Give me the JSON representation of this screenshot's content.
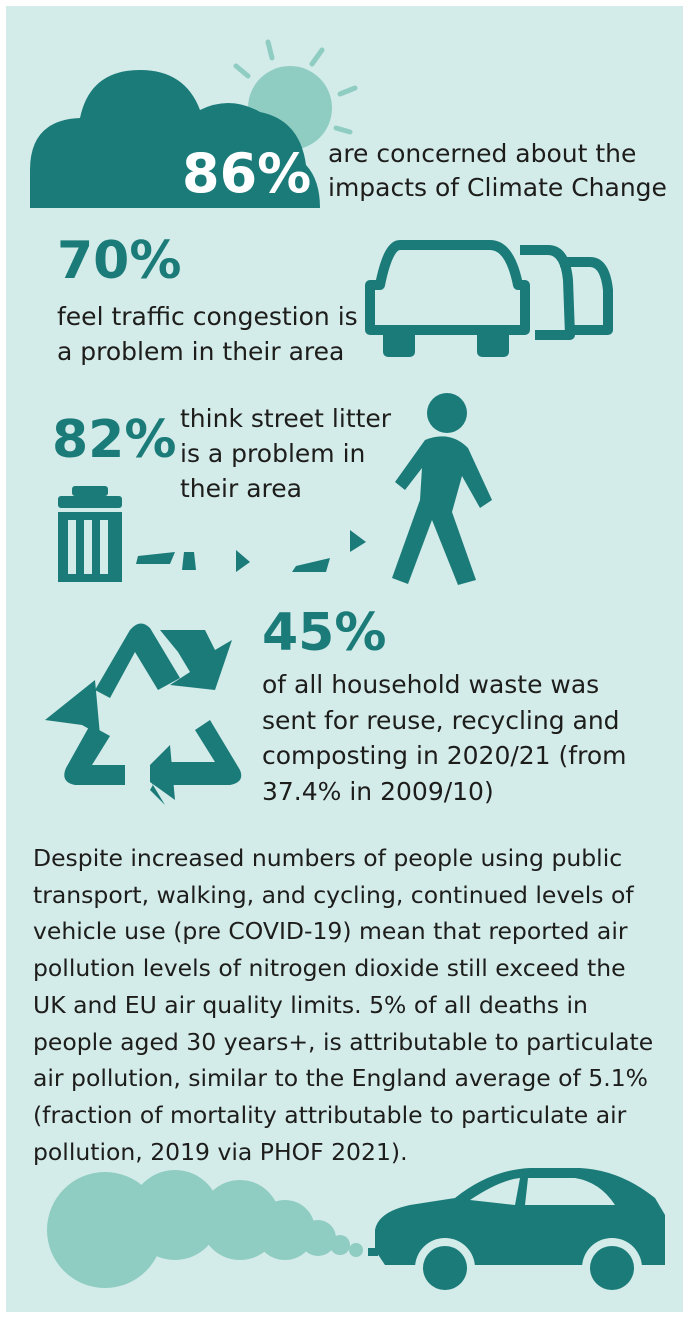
{
  "stats": [
    {
      "value": "86%",
      "text": [
        "are concerned about the",
        "impacts of Climate Change"
      ]
    },
    {
      "value": "70%",
      "text": [
        "feel traffic congestion is",
        "a problem in their area"
      ]
    },
    {
      "value": "82%",
      "text": [
        "think street litter",
        "is a problem in",
        "their area"
      ]
    },
    {
      "value": "45%",
      "text": [
        "of all household waste was",
        "sent for reuse, recycling and",
        "composting in 2020/21 (from",
        "37.4% in 2009/10)"
      ]
    }
  ],
  "paragraph": [
    "Despite increased numbers of people using public",
    "transport, walking, and cycling, continued levels of",
    "vehicle use (pre COVID-19) mean that reported air",
    "pollution levels of nitrogen dioxide still exceed the",
    "UK and EU air quality limits. 5% of all deaths in",
    "people aged 30 years+, is attributable to particulate",
    "air pollution, similar to the England average of 5.1%",
    "(fraction of mortality attributable to particulate air",
    "pollution, 2019 via PHOF 2021)."
  ]
}
